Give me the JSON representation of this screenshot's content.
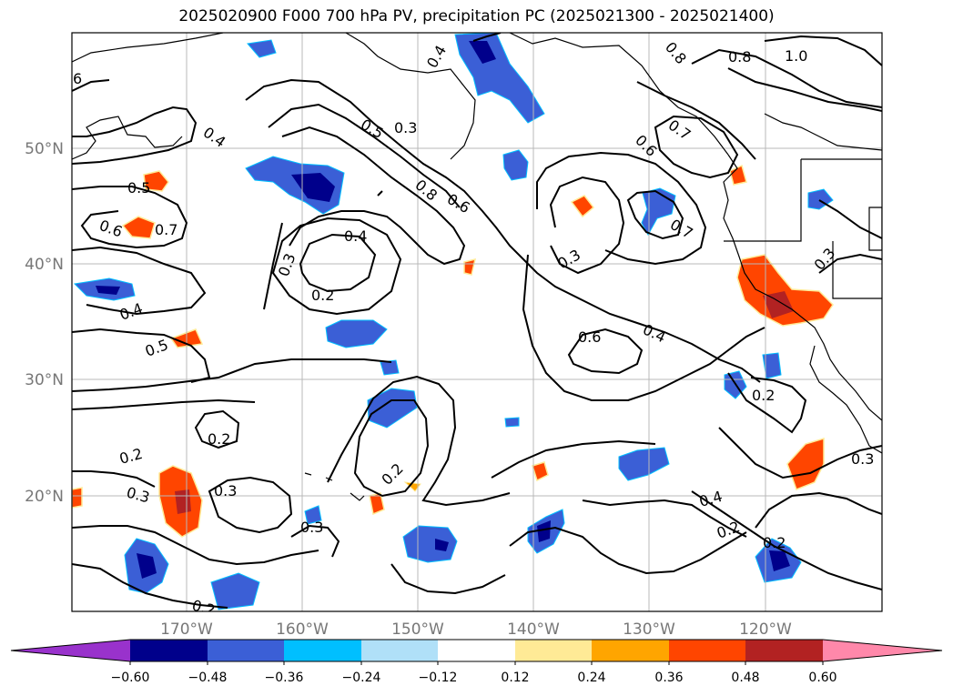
{
  "title": "2025020900 F000 700 hPa PV, precipitation PC (2025021300 - 2025021400)",
  "map": {
    "lat_labels": [
      "50°N",
      "40°N",
      "30°N",
      "20°N"
    ],
    "lon_labels": [
      "170°W",
      "160°W",
      "150°W",
      "140°W",
      "130°W",
      "120°W"
    ],
    "contour_labels": [
      {
        "text": "6"
      },
      {
        "text": "0.4"
      },
      {
        "text": "0.4"
      },
      {
        "text": "0.5"
      },
      {
        "text": "0.3"
      },
      {
        "text": "0.8"
      },
      {
        "text": "0.8"
      },
      {
        "text": "1.0"
      },
      {
        "text": "0.5"
      },
      {
        "text": "0.6"
      },
      {
        "text": "0.7"
      },
      {
        "text": "0.6"
      },
      {
        "text": "0.7"
      },
      {
        "text": "0.8"
      },
      {
        "text": "0.6"
      },
      {
        "text": "0.7"
      },
      {
        "text": "0.4"
      },
      {
        "text": "0.3"
      },
      {
        "text": "0.3"
      },
      {
        "text": "0.2"
      },
      {
        "text": "0.4"
      },
      {
        "text": "0.5"
      },
      {
        "text": "0.6"
      },
      {
        "text": "0.4"
      },
      {
        "text": "0.3"
      },
      {
        "text": "0.2"
      },
      {
        "text": "0.2"
      },
      {
        "text": "0.2"
      },
      {
        "text": "0.3"
      },
      {
        "text": "0.3"
      },
      {
        "text": "0.2"
      },
      {
        "text": "0.3"
      },
      {
        "text": "0.4"
      },
      {
        "text": "0.2"
      },
      {
        "text": "0.2"
      },
      {
        "text": "0.3"
      },
      {
        "text": "0.2"
      }
    ]
  },
  "colorbar": {
    "colors": [
      "#9932cc",
      "#00008b",
      "#3b5fd6",
      "#00bfff",
      "#b0e0f8",
      "#ffffff",
      "#ffea96",
      "#ffa500",
      "#ff4500",
      "#b22222",
      "#ff88aa"
    ],
    "ticks": [
      "−0.60",
      "−0.48",
      "−0.36",
      "−0.24",
      "−0.12",
      "0.12",
      "0.24",
      "0.36",
      "0.48",
      "0.60"
    ]
  }
}
